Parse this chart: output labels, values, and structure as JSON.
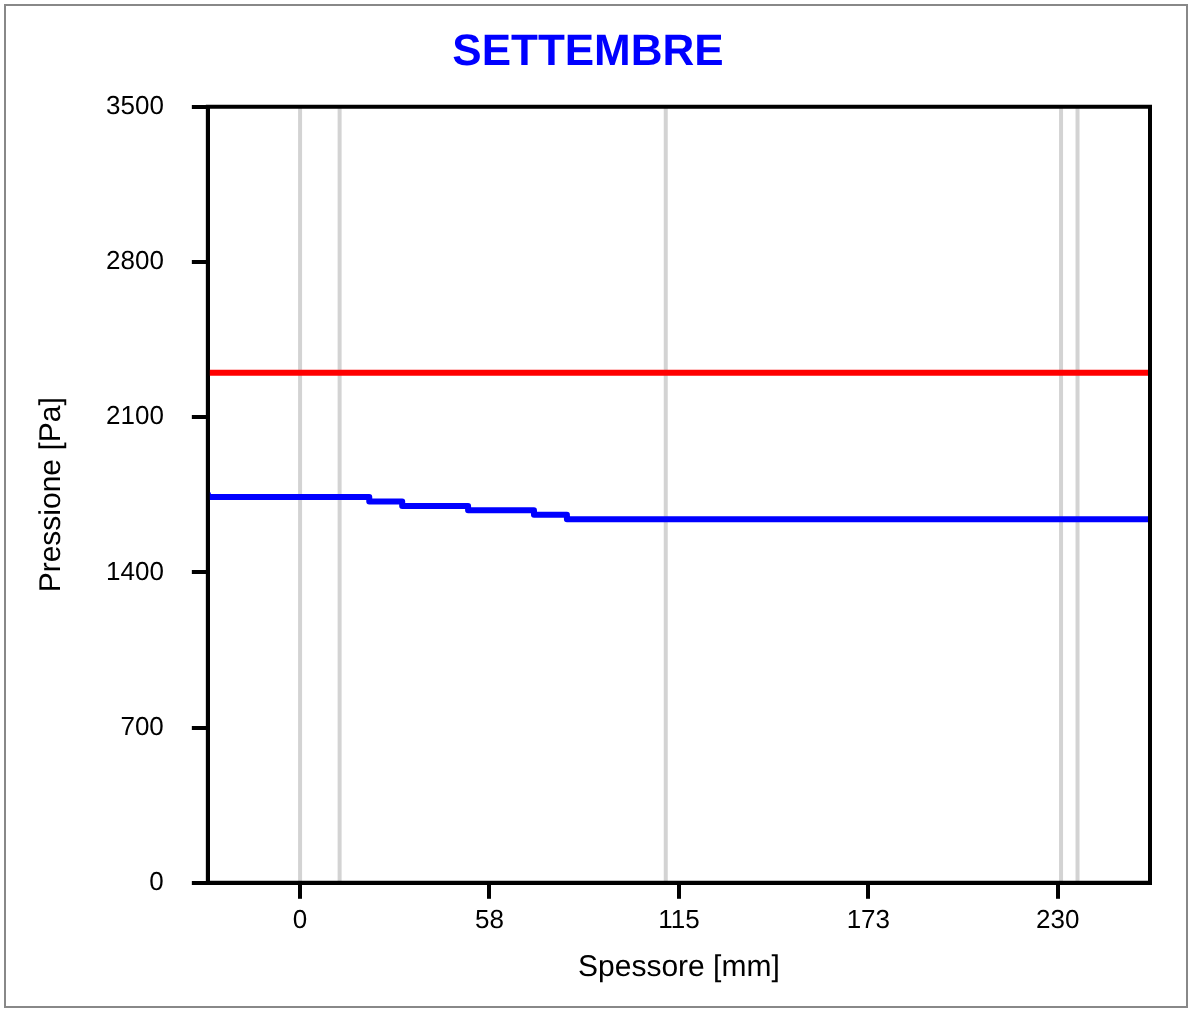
{
  "chart_data": {
    "type": "step",
    "title": "SETTEMBRE",
    "xlabel": "Spessore [mm]",
    "ylabel": "Pressione [Pa]",
    "xlim": [
      -28,
      258
    ],
    "xticks": [
      0,
      {
        "value": 57.5,
        "label": "58"
      },
      115,
      {
        "value": 172.5,
        "label": "173"
      },
      230
    ],
    "ylim": [
      0,
      3500
    ],
    "yticks": [
      0,
      700,
      1400,
      2100,
      2800,
      3500
    ],
    "series": [
      {
        "type": "line",
        "color": "#ff0000",
        "x": [
          -28,
          258
        ],
        "values": [
          2300,
          2300
        ]
      },
      {
        "color": "#0000ff",
        "x": [
          -28,
          21,
          31,
          51,
          71,
          81,
          101,
          258
        ],
        "values": [
          1760,
          1740,
          1720,
          1700,
          1680,
          1660,
          1640,
          1640
        ]
      }
    ],
    "ref_lines": [
      {
        "axis": "x",
        "value": 0,
        "color": "#d3d3d3"
      },
      {
        "axis": "x",
        "value": 12,
        "color": "#d3d3d3"
      },
      {
        "axis": "x",
        "value": 111,
        "color": "#d3d3d3"
      },
      {
        "axis": "x",
        "value": 231,
        "color": "#d3d3d3"
      },
      {
        "axis": "x",
        "value": 236,
        "color": "#d3d3d3"
      }
    ],
    "grid": false,
    "legend": false,
    "marker": "none",
    "line_style": "solid"
  }
}
